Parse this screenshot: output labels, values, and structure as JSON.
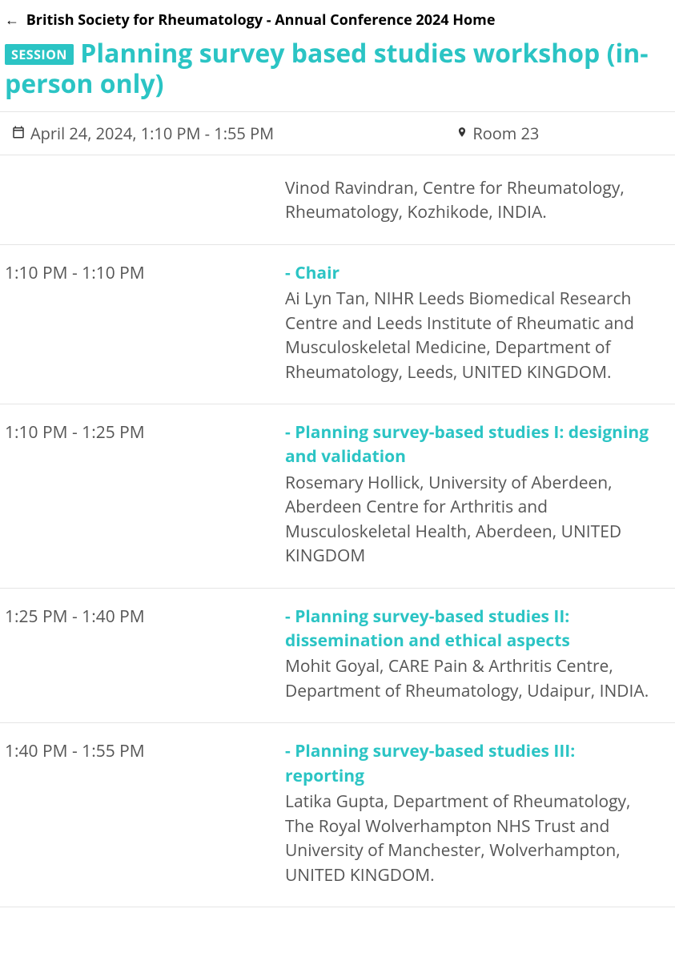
{
  "colors": {
    "accent": "#2bc4c4",
    "text_primary": "#333333",
    "text_secondary": "#555555",
    "border": "#e5e5e5",
    "background": "#ffffff",
    "badge_bg": "#2bc4c4",
    "badge_text": "#ffffff"
  },
  "back_link": "British Society for Rheumatology - Annual Conference 2024 Home",
  "badge_label": "SESSION",
  "session_title": "Planning survey based studies workshop (in-person only)",
  "meta": {
    "datetime": "April 24, 2024, 1:10 PM - 1:55 PM",
    "room": "Room 23"
  },
  "agenda": [
    {
      "time": "",
      "title": "",
      "description": "Vinod Ravindran, Centre for Rheumatology, Rheumatology, Kozhikode, INDIA."
    },
    {
      "time": "1:10 PM - 1:10 PM",
      "title": "- Chair",
      "description": "Ai Lyn Tan, NIHR Leeds Biomedical Research Centre and Leeds Institute of Rheumatic and Musculoskeletal Medicine, Department of Rheumatology, Leeds, UNITED KINGDOM."
    },
    {
      "time": "1:10 PM - 1:25 PM",
      "title": "- Planning survey-based studies I: designing and validation",
      "description": "Rosemary Hollick, University of Aberdeen, Aberdeen Centre for Arthritis and Musculoskeletal Health, Aberdeen, UNITED KINGDOM"
    },
    {
      "time": "1:25 PM - 1:40 PM",
      "title": "- Planning survey-based studies II: dissemination and ethical aspects",
      "description": "Mohit Goyal, CARE Pain & Arthritis Centre, Department of Rheumatology, Udaipur, INDIA."
    },
    {
      "time": "1:40 PM - 1:55 PM",
      "title": "- Planning survey-based studies III: reporting",
      "description": "Latika Gupta, Department of Rheumatology, The Royal Wolverhampton NHS Trust and University of Manchester, Wolverhampton, UNITED KINGDOM."
    }
  ]
}
